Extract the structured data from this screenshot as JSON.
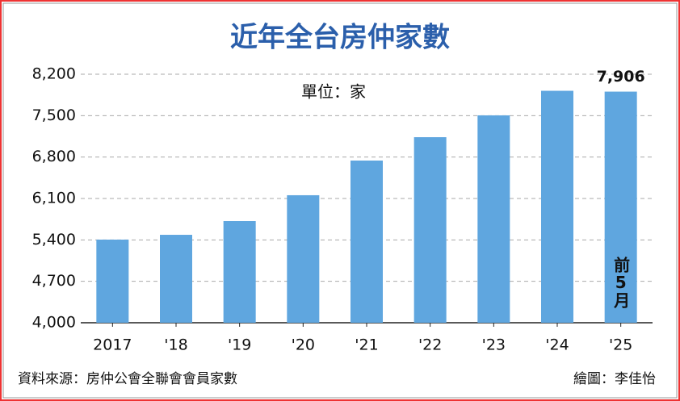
{
  "chart_data": {
    "type": "bar",
    "title": "近年全台房仲家數",
    "unit": "單位：家",
    "categories": [
      "2017",
      "'18",
      "'19",
      "'20",
      "'21",
      "'22",
      "'23",
      "'24",
      "'25"
    ],
    "values": [
      5405,
      5486,
      5718,
      6155,
      6741,
      7136,
      7505,
      7920,
      7906
    ],
    "value_labels": [
      null,
      null,
      null,
      null,
      null,
      null,
      null,
      null,
      "7,906"
    ],
    "color": "#5fa6df",
    "ylim": [
      4000,
      8200
    ],
    "yticks": [
      {
        "value": 4000,
        "label": "4,000"
      },
      {
        "value": 4700,
        "label": "4,700"
      },
      {
        "value": 5400,
        "label": "5,400"
      },
      {
        "value": 6100,
        "label": "6,100"
      },
      {
        "value": 6800,
        "label": "6,800"
      },
      {
        "value": 7500,
        "label": "7,500"
      },
      {
        "value": 8200,
        "label": "8,200"
      }
    ],
    "grid": true,
    "annotation": "前5月",
    "source": "資料來源：房仲公會全聯會會員家數",
    "credit": "繪圖：李佳怡"
  }
}
